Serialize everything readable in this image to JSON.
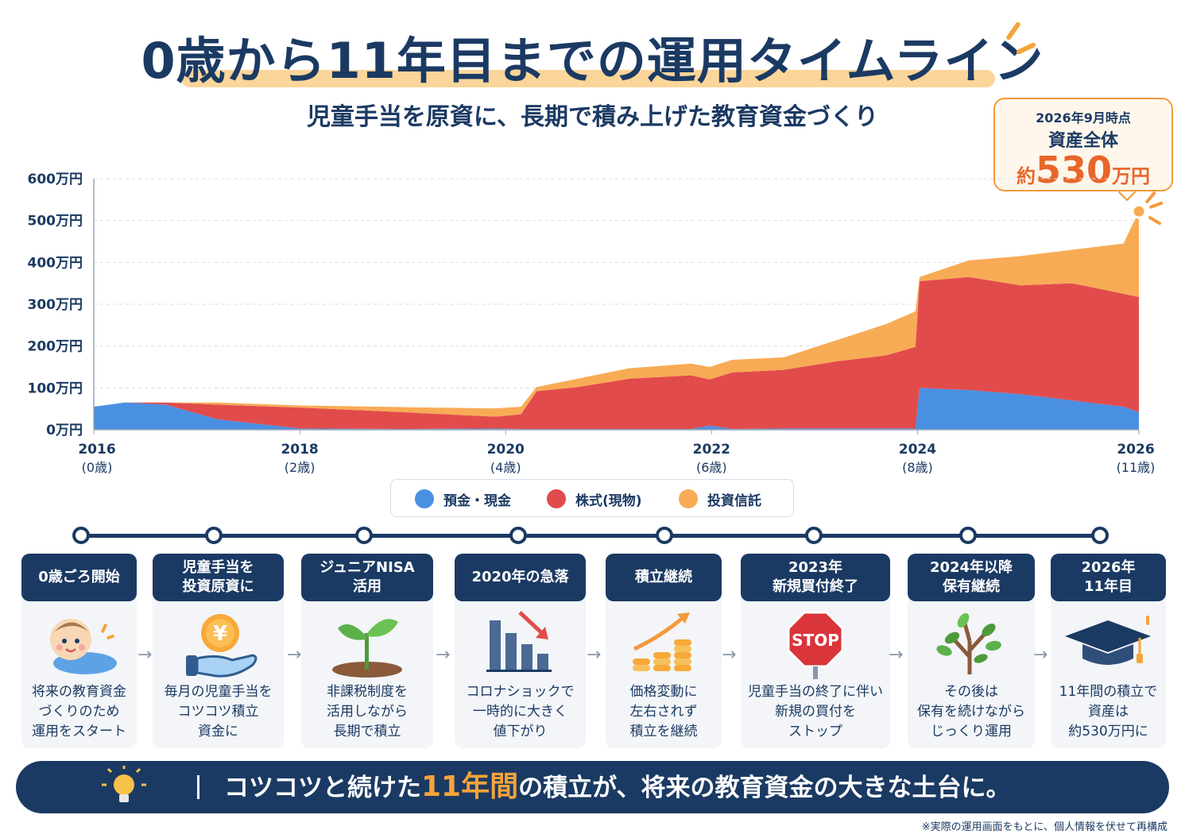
{
  "title": {
    "main": "0歳から11年目までの運用タイムライン",
    "subtitle": "児童手当を原資に、長期で積み上げた教育資金づくり"
  },
  "callout": {
    "date": "2026年9月時点",
    "label": "資産全体",
    "prefix": "約",
    "value": "530",
    "suffix": "万円"
  },
  "colors": {
    "cash": "#4a90e2",
    "stock": "#e24b4b",
    "fund": "#f8ab55",
    "navy": "#1b3a63",
    "accent": "#e8662a"
  },
  "chart_data": {
    "type": "area",
    "stacked": true,
    "x": [
      2016.0,
      2016.3,
      2016.7,
      2017.2,
      2018.0,
      2019.0,
      2019.9,
      2020.15,
      2020.3,
      2020.7,
      2021.2,
      2021.8,
      2021.98,
      2022.2,
      2022.7,
      2023.2,
      2023.7,
      2023.98,
      2024.02,
      2024.5,
      2025.0,
      2025.5,
      2026.0,
      2026.15
    ],
    "series": [
      {
        "name": "預金・現金",
        "values": [
          55,
          65,
          60,
          25,
          3,
          2,
          3,
          2,
          2,
          2,
          2,
          2,
          10,
          2,
          3,
          3,
          3,
          3,
          100,
          95,
          85,
          70,
          55,
          42
        ]
      },
      {
        "name": "株式(現物)",
        "values": [
          0,
          0,
          5,
          35,
          50,
          40,
          28,
          35,
          90,
          100,
          120,
          128,
          110,
          135,
          140,
          160,
          175,
          195,
          255,
          270,
          260,
          280,
          270,
          275
        ]
      },
      {
        "name": "投資信託",
        "values": [
          0,
          0,
          0,
          5,
          5,
          12,
          20,
          18,
          10,
          20,
          25,
          28,
          30,
          30,
          30,
          50,
          75,
          85,
          10,
          40,
          70,
          80,
          120,
          205
        ]
      }
    ],
    "ylim": [
      0,
      600
    ],
    "y_ticks": [
      "0万円",
      "100万円",
      "200万円",
      "300万円",
      "400万円",
      "500万円",
      "600万円"
    ],
    "x_ticks": [
      {
        "year": "2016",
        "age": "(0歳)"
      },
      {
        "year": "2018",
        "age": "(2歳)"
      },
      {
        "year": "2020",
        "age": "(4歳)"
      },
      {
        "year": "2022",
        "age": "(6歳)"
      },
      {
        "year": "2024",
        "age": "(8歳)"
      },
      {
        "year": "2026",
        "age": "(11歳)"
      }
    ],
    "xlim": [
      2016,
      2026.15
    ],
    "grid": true,
    "legend": "bottom"
  },
  "legend": [
    {
      "label": "預金・現金",
      "color": "#4a90e2"
    },
    {
      "label": "株式(現物)",
      "color": "#e24b4b"
    },
    {
      "label": "投資信託",
      "color": "#f8ab55"
    }
  ],
  "timeline": [
    {
      "head1": "0歳ごろ開始",
      "head2": "",
      "desc": [
        "将来の教育資金",
        "づくりのため",
        "運用をスタート"
      ],
      "icon": "baby-icon"
    },
    {
      "head1": "児童手当を",
      "head2": "投資原資に",
      "desc": [
        "毎月の児童手当を",
        "コツコツ積立",
        "資金に"
      ],
      "icon": "yen-hand-icon"
    },
    {
      "head1": "ジュニアNISA",
      "head2": "活用",
      "desc": [
        "非課税制度を",
        "活用しながら",
        "長期で積立"
      ],
      "icon": "sprout-icon"
    },
    {
      "head1": "2020年の急落",
      "head2": "",
      "desc": [
        "コロナショックで",
        "一時的に大きく",
        "値下がり"
      ],
      "icon": "chart-down-icon"
    },
    {
      "head1": "積立継続",
      "head2": "",
      "desc": [
        "価格変動に",
        "左右されず",
        "積立を継続"
      ],
      "icon": "coins-up-icon"
    },
    {
      "head1": "2023年",
      "head2": "新規買付終了",
      "desc": [
        "児童手当の終了に伴い",
        "新規の買付を",
        "ストップ"
      ],
      "icon": "stop-sign-icon"
    },
    {
      "head1": "2024年以降",
      "head2": "保有継続",
      "desc": [
        "その後は",
        "保有を続けながら",
        "じっくり運用"
      ],
      "icon": "tree-icon"
    },
    {
      "head1": "2026年",
      "head2": "11年目",
      "desc": [
        "11年間の積立で",
        "資産は",
        "約530万円に"
      ],
      "icon": "graduation-cap-icon"
    }
  ],
  "stop_text": "STOP",
  "yen_symbol": "¥",
  "banner": {
    "before": "コツコツと続けた",
    "highlight": "11年間",
    "after": "の積立が、将来の教育資金の大きな土台に。"
  },
  "footnote": "※実際の運用画面をもとに、個人情報を伏せて再構成"
}
